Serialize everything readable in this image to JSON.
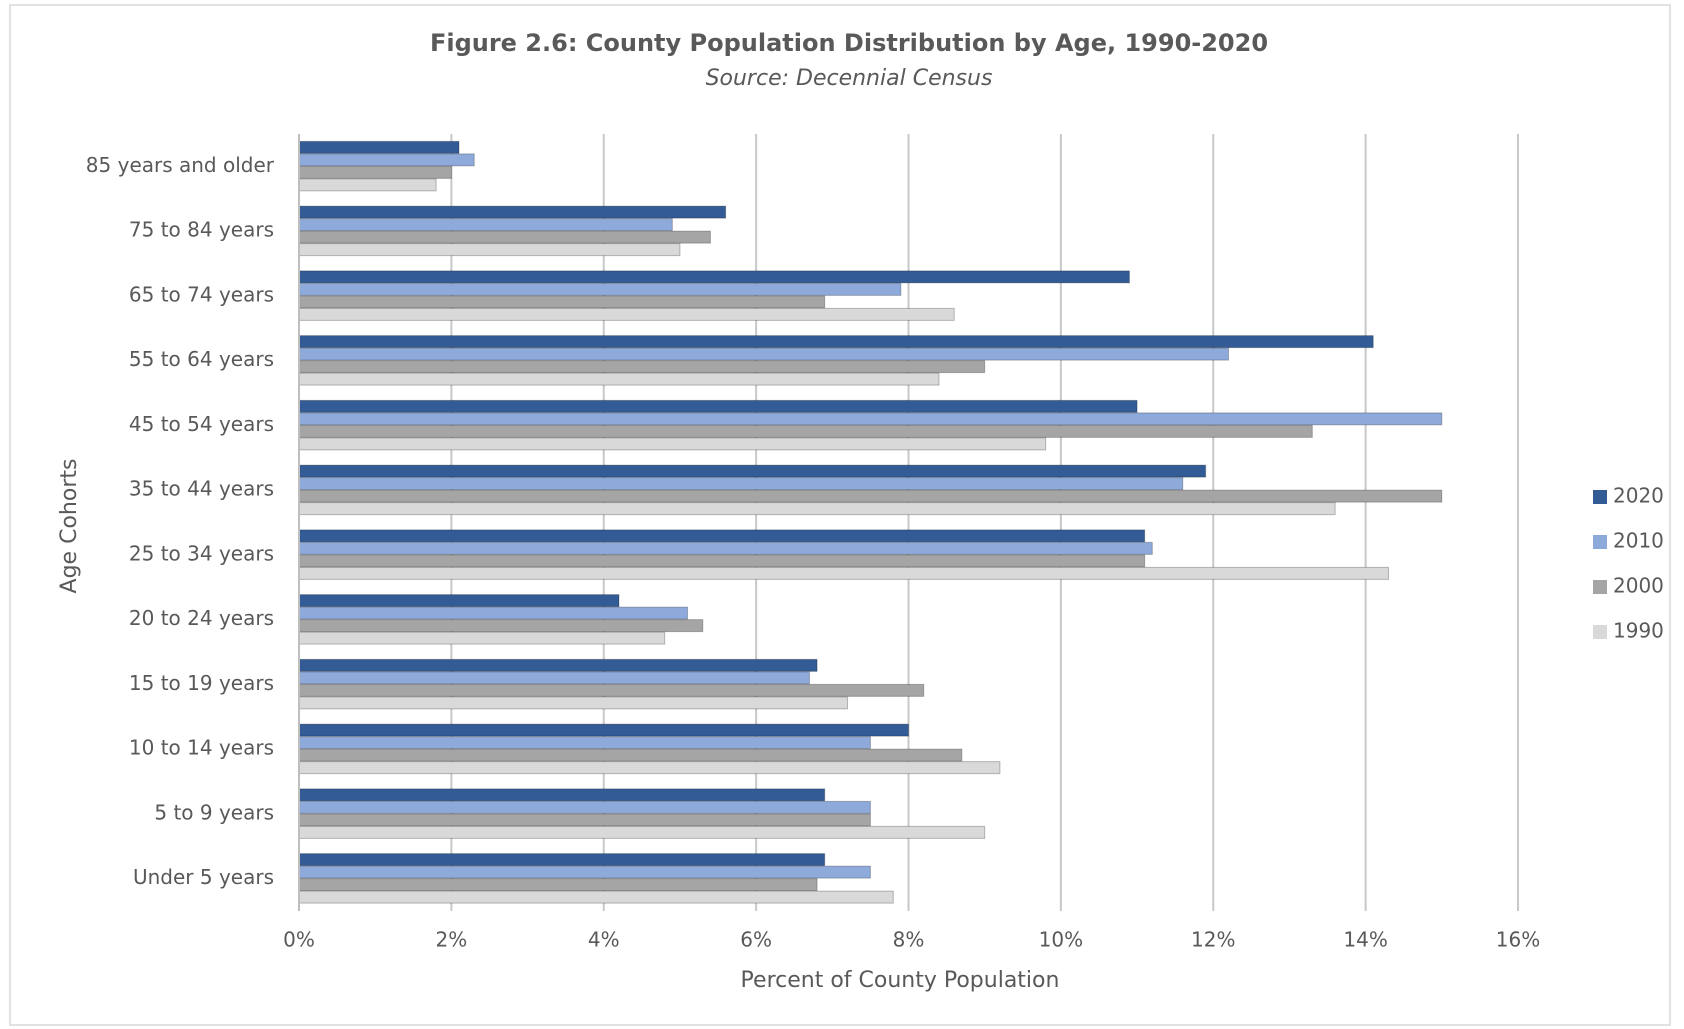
{
  "chart_data": {
    "type": "hbar",
    "title": "Figure 2.6: County Population Distribution by Age, 1990-2020",
    "subtitle": "Source: Decennial Census",
    "x_label": "Percent of County Population",
    "y_label": "Age Cohorts",
    "categories": [
      "85 years and older",
      "75 to 84 years",
      "65 to 74 years",
      "55 to 64 years",
      "45 to 54 years",
      "35 to 44 years",
      "25 to 34 years",
      "20 to 24 years",
      "15 to 19 years",
      "10 to 14 years",
      "5 to 9 years",
      "Under 5 years"
    ],
    "series": [
      {
        "name": "2020",
        "color": "#335c96",
        "values": [
          2.1,
          5.6,
          10.9,
          14.1,
          11.0,
          11.9,
          11.1,
          4.2,
          6.8,
          8.0,
          6.9,
          6.9
        ]
      },
      {
        "name": "2010",
        "color": "#8eaadb",
        "values": [
          2.3,
          4.9,
          7.9,
          12.2,
          15.0,
          11.6,
          11.2,
          5.1,
          6.7,
          7.5,
          7.5,
          7.5
        ]
      },
      {
        "name": "2000",
        "color": "#a5a5a5",
        "values": [
          2.0,
          5.4,
          6.9,
          9.0,
          13.3,
          15.0,
          11.1,
          5.3,
          8.2,
          8.7,
          7.5,
          6.8
        ]
      },
      {
        "name": "1990",
        "color": "#d9d9d9",
        "values": [
          1.8,
          5.0,
          8.6,
          8.4,
          9.8,
          13.6,
          14.3,
          4.8,
          7.2,
          9.2,
          9.0,
          7.8
        ]
      }
    ],
    "xlim": [
      0,
      16
    ],
    "xticks": [
      {
        "value": 0,
        "label": "0%"
      },
      {
        "value": 2,
        "label": "2%"
      },
      {
        "value": 4,
        "label": "4%"
      },
      {
        "value": 6,
        "label": "6%"
      },
      {
        "value": 8,
        "label": "8%"
      },
      {
        "value": 10,
        "label": "10%"
      },
      {
        "value": 12,
        "label": "12%"
      },
      {
        "value": 14,
        "label": "14%"
      },
      {
        "value": 16,
        "label": "16%"
      }
    ],
    "grid": true,
    "legend": "right"
  }
}
